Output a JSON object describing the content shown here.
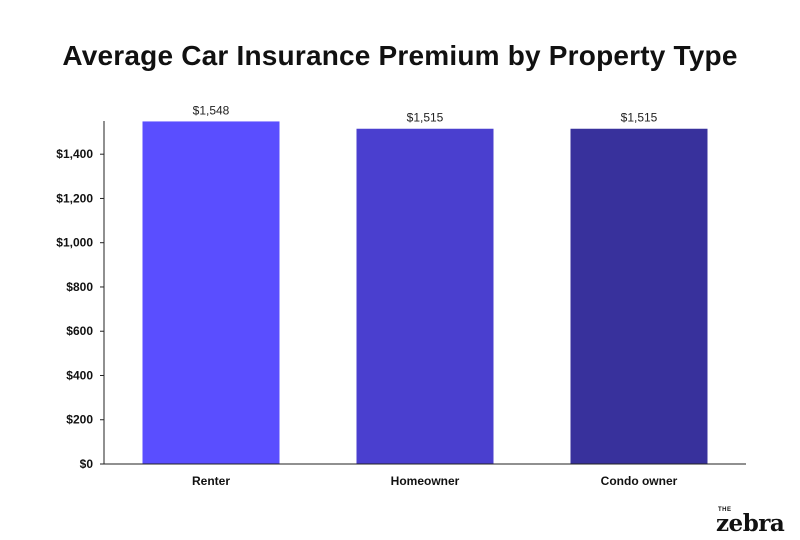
{
  "chart_data": {
    "type": "bar",
    "title": "Average Car Insurance Premium by Property Type",
    "xlabel": "",
    "ylabel": "",
    "categories": [
      "Renter",
      "Homeowner",
      "Condo owner"
    ],
    "values": [
      1548,
      1515,
      1515
    ],
    "data_labels": [
      "$1,548",
      "$1,515",
      "$1,515"
    ],
    "bar_colors": [
      "#5a4eff",
      "#4a3fcf",
      "#38319c"
    ],
    "ylim": [
      0,
      1550
    ],
    "yticks": [
      0,
      200,
      400,
      600,
      800,
      1000,
      1200,
      1400
    ],
    "ytick_labels": [
      "$0",
      "$200",
      "$400",
      "$600",
      "$800",
      "$1,000",
      "$1,200",
      "$1,400"
    ],
    "grid": false,
    "legend": "none"
  },
  "logo": {
    "small_text": "THE",
    "word": "zebra"
  }
}
